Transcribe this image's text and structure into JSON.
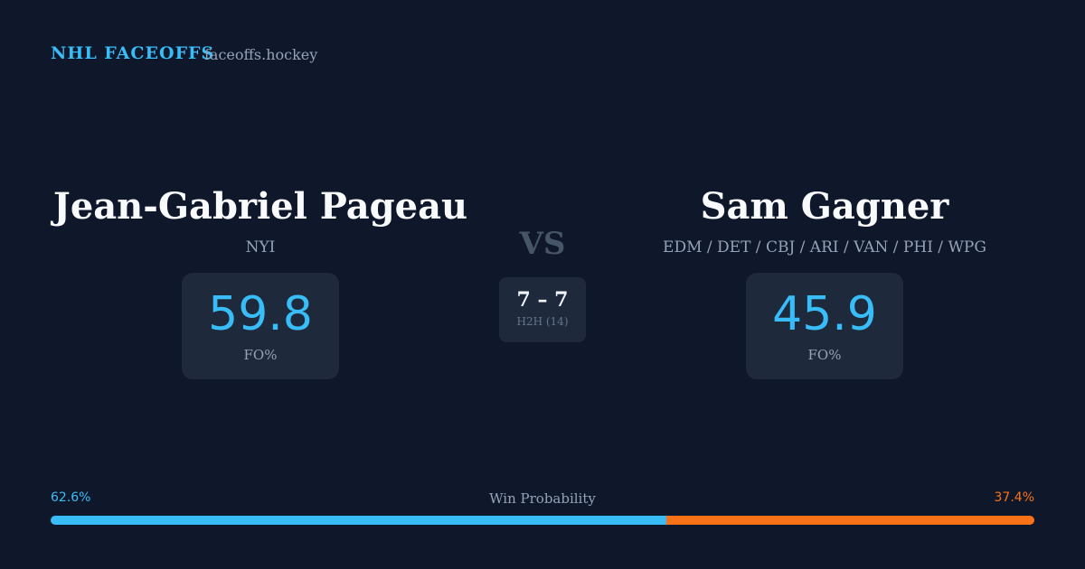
{
  "header": {
    "brand": "NHL FACEOFFS",
    "site": "faceoffs.hockey"
  },
  "players": [
    {
      "name": "Jean-Gabriel Pageau",
      "teams": "NYI",
      "fo_pct": 59.8,
      "fo_label": "FO%",
      "color": "#38bdf8"
    },
    {
      "name": "Sam Gagner",
      "teams": "EDM / DET / CBJ / ARI / VAN / PHI / WPG",
      "fo_pct": 45.9,
      "fo_label": "FO%",
      "color": "#38bdf8"
    }
  ],
  "versus": "VS",
  "head_to_head": {
    "score": "7 – 7",
    "label": "H2H (14)"
  },
  "win_probability": {
    "title": "Win Probability",
    "values": [
      62.6,
      37.4
    ],
    "value_labels": [
      "62.6%",
      "37.4%"
    ],
    "colors": [
      "#38bdf8",
      "#f97316"
    ]
  }
}
